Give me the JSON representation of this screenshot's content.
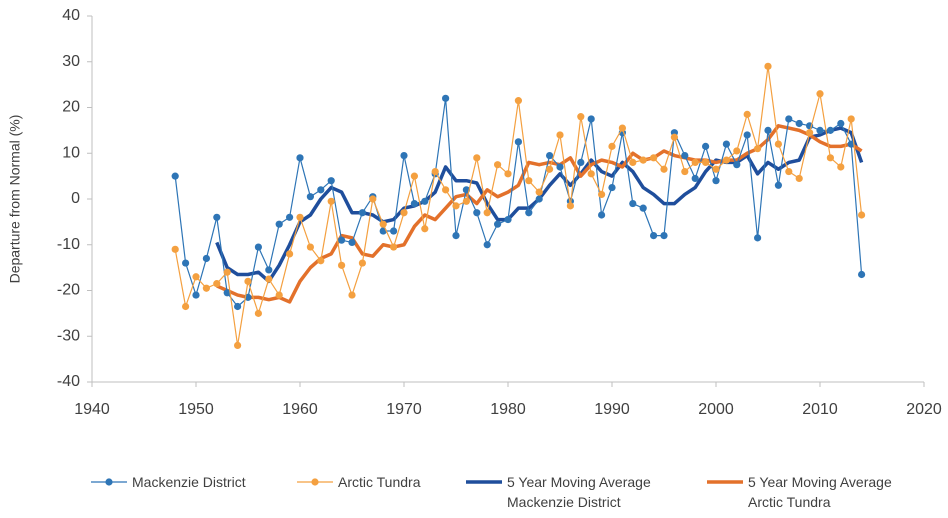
{
  "chart_data": {
    "type": "line",
    "y_label": "Departure from Normal (%)",
    "xlim": [
      1940,
      2020
    ],
    "xticks": [
      1940,
      1950,
      1960,
      1970,
      1980,
      1990,
      2000,
      2010,
      2020
    ],
    "ylim": [
      -40,
      40
    ],
    "yticks": [
      -40,
      -30,
      -20,
      -10,
      0,
      10,
      20,
      30,
      40
    ],
    "grid": false,
    "legend": "bottom",
    "series": [
      {
        "name": "Mackenzie District",
        "color": "#2e75b6",
        "marker": true,
        "x": [
          1948,
          1949,
          1950,
          1951,
          1952,
          1953,
          1954,
          1955,
          1956,
          1957,
          1958,
          1959,
          1960,
          1961,
          1962,
          1963,
          1964,
          1965,
          1966,
          1967,
          1968,
          1969,
          1970,
          1971,
          1972,
          1973,
          1974,
          1975,
          1976,
          1977,
          1978,
          1979,
          1980,
          1981,
          1982,
          1983,
          1984,
          1985,
          1986,
          1987,
          1988,
          1989,
          1990,
          1991,
          1992,
          1993,
          1994,
          1995,
          1996,
          1997,
          1998,
          1999,
          2000,
          2001,
          2002,
          2003,
          2004,
          2005,
          2006,
          2007,
          2008,
          2009,
          2010,
          2011,
          2012,
          2013,
          2014
        ],
        "values": [
          5,
          -14,
          -21,
          -13,
          -4,
          -20.5,
          -23.5,
          -21.5,
          -10.5,
          -15.5,
          -5.5,
          -4,
          9,
          0.5,
          2,
          4,
          -9,
          -9.5,
          -3,
          0.5,
          -7,
          -7,
          9.5,
          -1,
          -0.5,
          5.5,
          22,
          -8,
          2,
          -3,
          -10,
          -5.5,
          -4.5,
          12.5,
          -3,
          0,
          9.5,
          7,
          -0.5,
          8,
          17.5,
          -3.5,
          2.5,
          14.5,
          -1,
          -2,
          -8,
          -8,
          14.5,
          9.5,
          4.5,
          11.5,
          4,
          12,
          7.5,
          14,
          -8.5,
          15,
          3,
          17.5,
          16.5,
          16,
          15,
          15,
          16.5,
          12,
          -16.5
        ]
      },
      {
        "name": "Arctic Tundra",
        "color": "#f4a040",
        "marker": true,
        "x": [
          1948,
          1949,
          1950,
          1951,
          1952,
          1953,
          1954,
          1955,
          1956,
          1957,
          1958,
          1959,
          1960,
          1961,
          1962,
          1963,
          1964,
          1965,
          1966,
          1967,
          1968,
          1969,
          1970,
          1971,
          1972,
          1973,
          1974,
          1975,
          1976,
          1977,
          1978,
          1979,
          1980,
          1981,
          1982,
          1983,
          1984,
          1985,
          1986,
          1987,
          1988,
          1989,
          1990,
          1991,
          1992,
          1993,
          1994,
          1995,
          1996,
          1997,
          1998,
          1999,
          2000,
          2001,
          2002,
          2003,
          2004,
          2005,
          2006,
          2007,
          2008,
          2009,
          2010,
          2011,
          2012,
          2013,
          2014
        ],
        "values": [
          -11,
          -23.5,
          -17,
          -19.5,
          -18.5,
          -16,
          -32,
          -18,
          -25,
          -17.5,
          -21,
          -12,
          -4,
          -10.5,
          -13.5,
          -0.5,
          -14.5,
          -21,
          -14,
          0,
          -5.5,
          -10.5,
          -3,
          5,
          -6.5,
          6,
          2,
          -1.5,
          -0.5,
          9,
          -3,
          7.5,
          5.5,
          21.5,
          4,
          1.5,
          6.5,
          14,
          -1.5,
          18,
          5.5,
          1,
          11.5,
          15.5,
          8,
          8.5,
          9,
          6.5,
          13.5,
          6,
          8,
          8,
          6.5,
          8.5,
          10.5,
          18.5,
          11,
          29,
          12,
          6,
          4.5,
          14.5,
          23,
          9,
          7,
          17.5,
          -3.5
        ]
      },
      {
        "name": "5 Year Moving Average Mackenzie District",
        "color": "#1f4e9c",
        "marker": false,
        "x": [
          1952,
          1953,
          1954,
          1955,
          1956,
          1957,
          1958,
          1959,
          1960,
          1961,
          1962,
          1963,
          1964,
          1965,
          1966,
          1967,
          1968,
          1969,
          1970,
          1971,
          1972,
          1973,
          1974,
          1975,
          1976,
          1977,
          1978,
          1979,
          1980,
          1981,
          1982,
          1983,
          1984,
          1985,
          1986,
          1987,
          1988,
          1989,
          1990,
          1991,
          1992,
          1993,
          1994,
          1995,
          1996,
          1997,
          1998,
          1999,
          2000,
          2001,
          2002,
          2003,
          2004,
          2005,
          2006,
          2007,
          2008,
          2009,
          2010,
          2011,
          2012,
          2013,
          2014
        ],
        "values": [
          -9.5,
          -15,
          -16.5,
          -16.5,
          -16,
          -18,
          -14.5,
          -10,
          -5,
          -3.5,
          0,
          2.5,
          1.5,
          -3,
          -3,
          -3.5,
          -5,
          -4.5,
          -2,
          -1.5,
          -0.5,
          1.5,
          7,
          4,
          4,
          3.5,
          -1,
          -4.5,
          -4.5,
          -2,
          -2,
          0,
          3,
          5.5,
          3,
          5.5,
          8.5,
          6,
          5,
          8,
          6,
          2.5,
          1,
          -1,
          -1,
          1,
          2.5,
          6,
          8.5,
          8,
          8,
          9.5,
          5.5,
          8,
          6.5,
          8,
          8.5,
          13.5,
          14,
          15,
          15.5,
          14.5,
          8
        ]
      },
      {
        "name": "5 Year Moving Average Arctic Tundra",
        "color": "#e3712b",
        "marker": false,
        "x": [
          1952,
          1953,
          1954,
          1955,
          1956,
          1957,
          1958,
          1959,
          1960,
          1961,
          1962,
          1963,
          1964,
          1965,
          1966,
          1967,
          1968,
          1969,
          1970,
          1971,
          1972,
          1973,
          1974,
          1975,
          1976,
          1977,
          1978,
          1979,
          1980,
          1981,
          1982,
          1983,
          1984,
          1985,
          1986,
          1987,
          1988,
          1989,
          1990,
          1991,
          1992,
          1993,
          1994,
          1995,
          1996,
          1997,
          1998,
          1999,
          2000,
          2001,
          2002,
          2003,
          2004,
          2005,
          2006,
          2007,
          2008,
          2009,
          2010,
          2011,
          2012,
          2013,
          2014
        ],
        "values": [
          -19,
          -20,
          -21,
          -21.5,
          -21.5,
          -22,
          -21.5,
          -22.5,
          -18,
          -15,
          -13,
          -12,
          -8,
          -8.5,
          -12,
          -12.5,
          -10,
          -10.5,
          -10,
          -6,
          -3.5,
          -4.5,
          -2,
          0.5,
          1,
          -1,
          2,
          0.5,
          1.5,
          3,
          8,
          7.5,
          8,
          7.5,
          9,
          5,
          7.5,
          8.5,
          8,
          7,
          10,
          8.5,
          9,
          10.5,
          9.5,
          9,
          8.5,
          8.5,
          8,
          8.5,
          8.5,
          10,
          11,
          13,
          16,
          15.5,
          15,
          14,
          12.5,
          11.5,
          11.5,
          12,
          10.5
        ]
      }
    ]
  }
}
